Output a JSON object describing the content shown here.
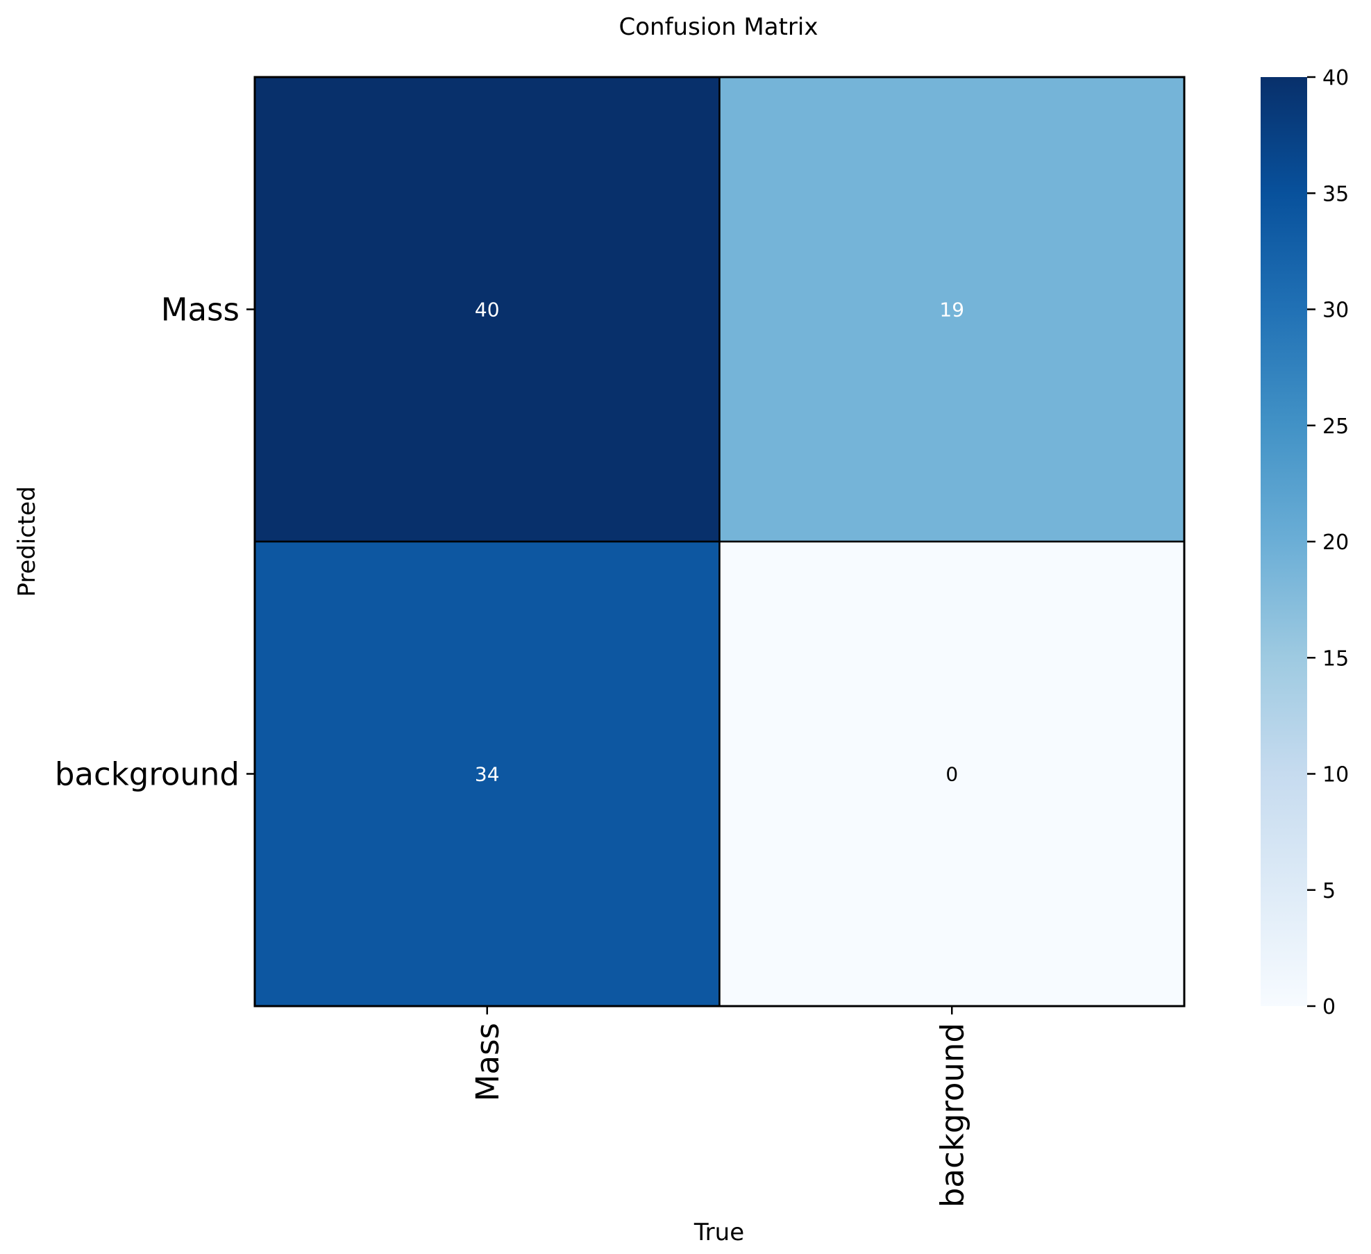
{
  "chart_data": {
    "type": "heatmap",
    "title": "Confusion Matrix",
    "xlabel": "True",
    "ylabel": "Predicted",
    "x_categories": [
      "Mass",
      "background"
    ],
    "y_categories": [
      "Mass",
      "background"
    ],
    "values": [
      [
        40,
        19
      ],
      [
        34,
        0
      ]
    ],
    "colormap": "Blues",
    "colorbar": {
      "range": [
        0,
        40
      ],
      "ticks": [
        "0",
        "5",
        "10",
        "15",
        "20",
        "25",
        "30",
        "35",
        "40"
      ]
    },
    "grid": false,
    "colors": {
      "low": "#f7fbff",
      "high": "#08306b",
      "text_on_dark": "#ffffff",
      "text_on_light": "#000000"
    }
  }
}
